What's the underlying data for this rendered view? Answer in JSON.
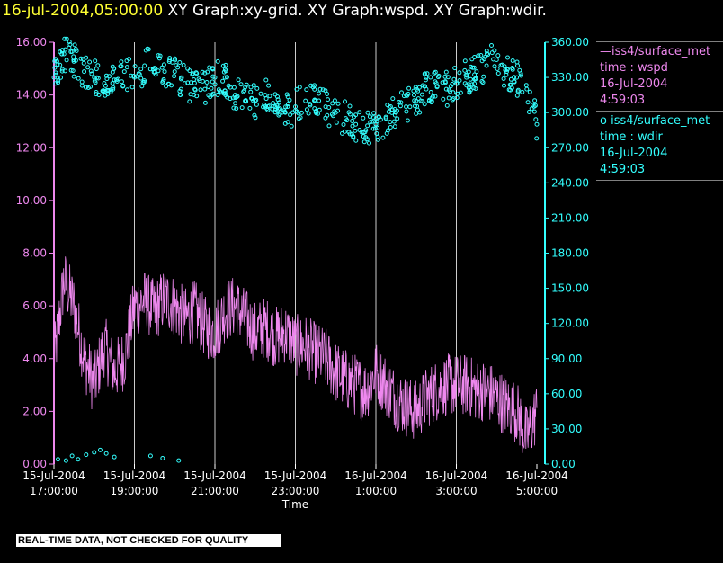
{
  "header": {
    "datetime": "16-jul-2004,05:00:00",
    "graphs": "XY Graph:xy-grid.  XY Graph:wspd.  XY Graph:wdir."
  },
  "banner": {
    "text": "REAL-TIME DATA, NOT CHECKED FOR QUALITY"
  },
  "legend": [
    {
      "symbol": "—",
      "name": "iss4/surface_met",
      "variable": "time : wspd",
      "date": "16-Jul-2004",
      "time": "4:59:03",
      "color": "#ee88ee"
    },
    {
      "symbol": "o",
      "name": "iss4/surface_met",
      "variable": "time : wdir",
      "date": "16-Jul-2004",
      "time": "4:59:03",
      "color": "#33ffff"
    }
  ],
  "chart_data": {
    "type": "line",
    "xlabel": "Time",
    "x_range_hours": [
      17.0,
      29.0
    ],
    "x_ticks": [
      {
        "date": "15-Jul-2004",
        "time": "17:00:00"
      },
      {
        "date": "15-Jul-2004",
        "time": "19:00:00"
      },
      {
        "date": "15-Jul-2004",
        "time": "21:00:00"
      },
      {
        "date": "15-Jul-2004",
        "time": "23:00:00"
      },
      {
        "date": "16-Jul-2004",
        "time": "1:00:00"
      },
      {
        "date": "16-Jul-2004",
        "time": "3:00:00"
      },
      {
        "date": "16-Jul-2004",
        "time": "5:00:00"
      }
    ],
    "y_left": {
      "range": [
        0,
        16
      ],
      "ticks": [
        "0.00",
        "2.00",
        "4.00",
        "6.00",
        "8.00",
        "10.00",
        "12.00",
        "14.00",
        "16.00"
      ],
      "color": "#ee88ee"
    },
    "y_right": {
      "range": [
        0,
        360
      ],
      "ticks": [
        "0.00",
        "30.00",
        "60.00",
        "90.00",
        "120.00",
        "150.00",
        "180.00",
        "210.00",
        "240.00",
        "270.00",
        "300.00",
        "330.00",
        "360.00"
      ],
      "color": "#33ffff"
    },
    "grid": "vertical",
    "series": [
      {
        "name": "iss4/surface_met time : wspd",
        "axis": "left",
        "style": "line",
        "color": "#ee88ee",
        "x_hours": [
          17.0,
          17.25,
          17.5,
          17.75,
          18.0,
          18.25,
          18.5,
          18.75,
          19.0,
          19.25,
          19.5,
          19.75,
          20.0,
          20.25,
          20.5,
          20.75,
          21.0,
          21.25,
          21.5,
          21.75,
          22.0,
          22.25,
          22.5,
          22.75,
          23.0,
          23.25,
          23.5,
          23.75,
          24.0,
          24.25,
          24.5,
          24.75,
          25.0,
          25.25,
          25.5,
          25.75,
          26.0,
          26.25,
          26.5,
          26.75,
          27.0,
          27.25,
          27.5,
          27.75,
          28.0,
          28.25,
          28.5,
          28.75,
          29.0
        ],
        "values": [
          3.8,
          7.0,
          6.0,
          4.0,
          3.0,
          4.5,
          3.5,
          4.0,
          6.0,
          6.2,
          5.8,
          6.3,
          6.0,
          5.5,
          5.8,
          5.2,
          5.0,
          5.8,
          6.0,
          5.5,
          5.0,
          5.2,
          4.8,
          5.0,
          4.5,
          4.5,
          4.2,
          4.0,
          3.5,
          3.2,
          3.0,
          2.8,
          3.5,
          3.0,
          2.5,
          2.2,
          2.0,
          2.5,
          2.8,
          3.0,
          3.0,
          3.0,
          2.8,
          2.8,
          2.5,
          2.2,
          2.0,
          1.0,
          2.0
        ]
      },
      {
        "name": "iss4/surface_met time : wdir",
        "axis": "right",
        "style": "scatter",
        "color": "#33ffff",
        "x_hours": [
          17.0,
          17.25,
          17.5,
          17.75,
          18.0,
          18.25,
          18.5,
          18.75,
          19.0,
          19.25,
          19.5,
          19.75,
          20.0,
          20.25,
          20.5,
          20.75,
          21.0,
          21.25,
          21.5,
          21.75,
          22.0,
          22.25,
          22.5,
          22.75,
          23.0,
          23.25,
          23.5,
          23.75,
          24.0,
          24.25,
          24.5,
          24.75,
          25.0,
          25.25,
          25.5,
          25.75,
          26.0,
          26.25,
          26.5,
          26.75,
          27.0,
          27.25,
          27.5,
          27.75,
          28.0,
          28.25,
          28.5,
          28.75,
          29.0
        ],
        "values": [
          330,
          350,
          345,
          335,
          330,
          325,
          328,
          335,
          330,
          340,
          338,
          335,
          335,
          325,
          320,
          320,
          330,
          330,
          315,
          310,
          310,
          315,
          305,
          300,
          305,
          310,
          310,
          305,
          300,
          295,
          290,
          285,
          290,
          295,
          300,
          305,
          310,
          320,
          325,
          320,
          325,
          330,
          335,
          340,
          345,
          335,
          330,
          320,
          290
        ],
        "low_points_x_hours": [
          17.1,
          17.3,
          17.45,
          17.6,
          17.8,
          18.0,
          18.15,
          18.3,
          18.5,
          19.4,
          19.7,
          20.1
        ],
        "low_points_values": [
          4,
          3,
          7,
          4,
          8,
          10,
          12,
          9,
          6,
          7,
          5,
          3
        ]
      }
    ]
  }
}
